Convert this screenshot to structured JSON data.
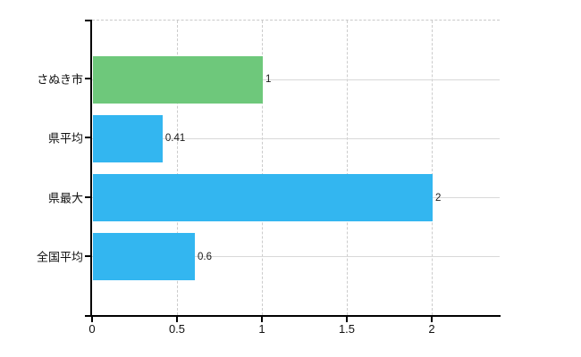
{
  "chart_data": {
    "type": "bar",
    "orientation": "horizontal",
    "title": "",
    "xlabel": "",
    "ylabel": "",
    "categories": [
      "さぬき市",
      "県平均",
      "県最大",
      "全国平均"
    ],
    "values": [
      1,
      0.41,
      2,
      0.6
    ],
    "value_labels": [
      "1",
      "0.41",
      "2",
      "0.6"
    ],
    "bar_colors": [
      "#6ec87b",
      "#33b6f0",
      "#33b6f0",
      "#33b6f0"
    ],
    "x_ticks": [
      0,
      0.5,
      1,
      1.5,
      2
    ],
    "x_tick_labels": [
      "0",
      "0.5",
      "1",
      "1.5",
      "2"
    ],
    "xlim": [
      0,
      2.4
    ],
    "grid": true,
    "legend": false,
    "colors": {
      "axis": "#000000",
      "grid_solid": "#d8d8d8",
      "grid_dashed": "#cccccc",
      "text": "#111111",
      "background": "#ffffff"
    }
  }
}
